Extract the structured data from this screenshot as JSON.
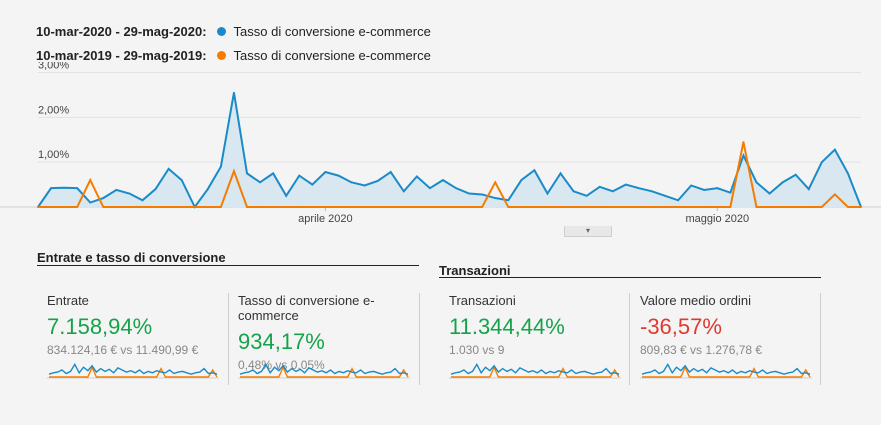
{
  "legend": {
    "current_range": "10-mar-2020 - 29-mag-2020:",
    "previous_range": "10-mar-2019 - 29-mag-2019:",
    "metric_label": "Tasso di conversione e-commerce",
    "current_color": "#1a8bc8",
    "previous_color": "#f57c00"
  },
  "chart_data": {
    "type": "line",
    "ylabel": "",
    "yticks": [
      "1,00%",
      "2,00%",
      "3,00%"
    ],
    "ylim": [
      0,
      3.1
    ],
    "x_month_labels": [
      {
        "label": "aprile 2020",
        "day_index": 22
      },
      {
        "label": "maggio 2020",
        "day_index": 52
      }
    ],
    "series": [
      {
        "values": [
          0,
          0.42,
          0.43,
          0.42,
          0.1,
          0.2,
          0.38,
          0.3,
          0.15,
          0.4,
          0.85,
          0.6,
          0,
          0.4,
          0.9,
          2.55,
          0.75,
          0.55,
          0.75,
          0.25,
          0.7,
          0.5,
          0.78,
          0.7,
          0.55,
          0.48,
          0.58,
          0.78,
          0.35,
          0.68,
          0.42,
          0.6,
          0.42,
          0.3,
          0.28,
          0.2,
          0.15,
          0.6,
          0.82,
          0.3,
          0.75,
          0.35,
          0.25,
          0.45,
          0.35,
          0.5,
          0.42,
          0.35,
          0.25,
          0.15,
          0.48,
          0.38,
          0.42,
          0.32,
          1.15,
          0.55,
          0.3,
          0.55,
          0.72,
          0.4,
          1.0,
          1.28,
          0.75,
          0
        ]
      },
      {
        "values": [
          0,
          0,
          0,
          0,
          0.6,
          0,
          0,
          0,
          0,
          0,
          0,
          0,
          0,
          0,
          0,
          0.8,
          0,
          0,
          0,
          0,
          0,
          0,
          0,
          0,
          0,
          0,
          0,
          0,
          0,
          0,
          0,
          0,
          0,
          0,
          0,
          0.55,
          0,
          0,
          0,
          0,
          0,
          0,
          0,
          0,
          0,
          0,
          0,
          0,
          0,
          0,
          0,
          0,
          0,
          0,
          1.45,
          0,
          0,
          0,
          0,
          0,
          0,
          0.28,
          0,
          0
        ]
      }
    ]
  },
  "groups": [
    {
      "title": "Entrate e tasso di conversione"
    },
    {
      "title": "Transazioni"
    }
  ],
  "cards": [
    {
      "label": "Entrate",
      "delta": "7.158,94%",
      "compare": "834.124,16 € vs 11.490,99 €",
      "positive": true
    },
    {
      "label": "Tasso di conversione e-commerce",
      "delta": "934,17%",
      "compare": "0,48% vs 0,05%",
      "positive": true
    },
    {
      "label": "Transazioni",
      "delta": "11.344,44%",
      "compare": "1.030 vs 9",
      "positive": true
    },
    {
      "label": "Valore medio ordini",
      "delta": "-36,57%",
      "compare": "809,83 € vs 1.276,78 €",
      "positive": false
    }
  ],
  "sparklines": {
    "current": [
      0.2,
      0.3,
      0.35,
      0.5,
      0.25,
      0.4,
      0.9,
      0.3,
      0.7,
      0.45,
      0.8,
      0.35,
      0.6,
      0.4,
      0.55,
      0.3,
      0.65,
      0.5,
      0.35,
      0.45,
      0.3,
      0.5,
      0.25,
      0.4,
      0.3,
      0.45,
      0.35,
      0.3,
      0.5,
      0.25,
      0.35,
      0.4,
      0.3,
      0.2,
      0.3,
      0.35,
      0.6,
      0.25,
      0.3,
      0.2
    ],
    "previous": [
      0,
      0,
      0,
      0,
      0,
      0,
      0,
      0,
      0,
      0,
      0.7,
      0,
      0,
      0,
      0,
      0,
      0,
      0,
      0,
      0,
      0,
      0,
      0,
      0,
      0,
      0,
      0.6,
      0,
      0,
      0,
      0,
      0,
      0,
      0,
      0,
      0,
      0,
      0,
      0.5,
      0
    ]
  }
}
